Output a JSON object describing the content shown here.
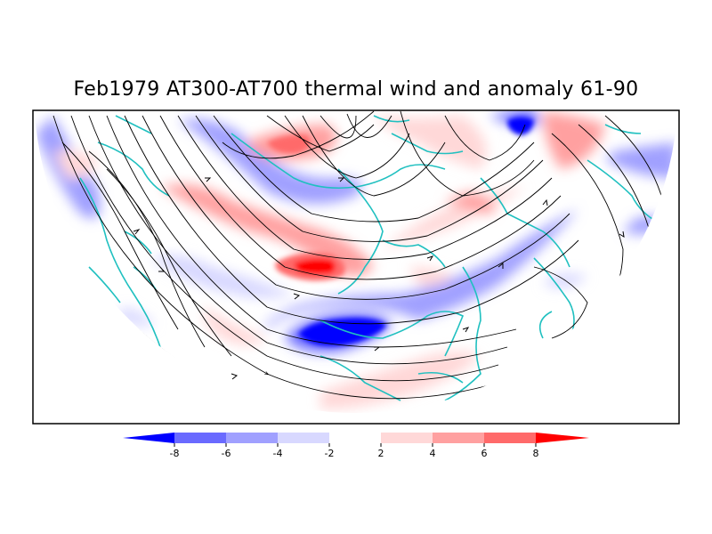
{
  "title": "Feb1979 AT300-AT700 thermal wind and anomaly 61-90",
  "colorbar": {
    "labels": [
      "-8",
      "-6",
      "-4",
      "-2",
      "2",
      "4",
      "6",
      "8"
    ],
    "colors": [
      "#0000ff",
      "#6a6aff",
      "#a0a0ff",
      "#d8d8ff",
      "#ffffff",
      "#ffd8d8",
      "#ffa0a0",
      "#ff6a6a",
      "#ff0000"
    ]
  },
  "map": {
    "projection": "north polar stereographic (upper half)",
    "coastline_color": "#20c0c0",
    "streamline_color": "#000000"
  }
}
